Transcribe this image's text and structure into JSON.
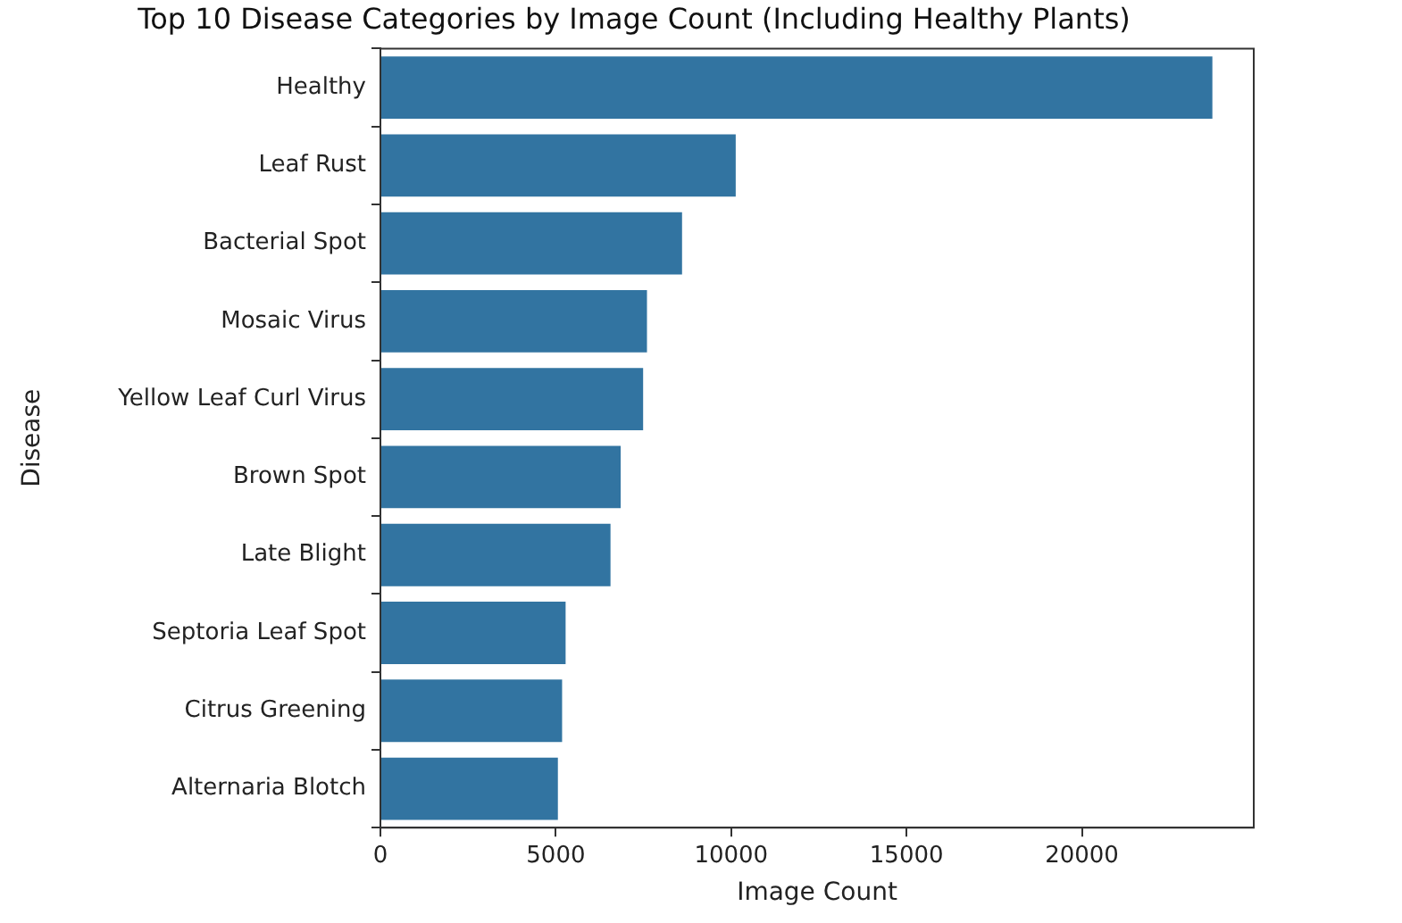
{
  "chart_data": {
    "type": "bar",
    "orientation": "horizontal",
    "title": "Top 10 Disease Categories by Image Count (Including Healthy Plants)",
    "xlabel": "Image Count",
    "ylabel": "Disease",
    "categories": [
      "Healthy",
      "Leaf Rust",
      "Bacterial Spot",
      "Mosaic Virus",
      "Yellow Leaf Curl Virus",
      "Brown Spot",
      "Late Blight",
      "Septoria Leaf Spot",
      "Citrus Greening",
      "Alternaria Blotch"
    ],
    "values": [
      23720,
      10130,
      8600,
      7600,
      7490,
      6850,
      6560,
      5280,
      5180,
      5060
    ],
    "color": "#3274a1",
    "xlim": [
      0,
      24900
    ],
    "xticks": [
      0,
      5000,
      10000,
      15000,
      20000
    ],
    "grid": false,
    "legend": false
  }
}
